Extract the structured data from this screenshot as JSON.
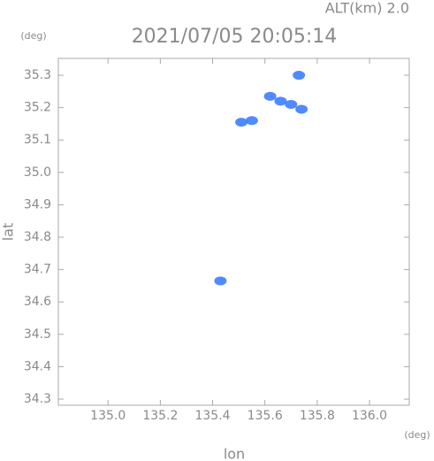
{
  "chart_data": {
    "type": "scatter",
    "title": "2021/07/05 20:05:14",
    "subtitle": "ALT(km) 2.0",
    "x_label": "lon",
    "y_label": "lat",
    "x_unit": "(deg)",
    "y_unit": "(deg)",
    "series": [
      {
        "color": "#3d7dff",
        "x": [
          135.73,
          135.62,
          135.66,
          135.7,
          135.74,
          135.55,
          135.51,
          135.43
        ],
        "y": [
          35.3,
          35.235,
          35.22,
          35.21,
          35.195,
          35.16,
          35.155,
          34.665
        ]
      }
    ],
    "xlim": [
      134.81,
      136.152
    ],
    "ylim": [
      34.281,
      35.352
    ],
    "xticks": [
      {
        "value": 135.0,
        "label": "135.0"
      },
      {
        "value": 135.2,
        "label": "135.2"
      },
      {
        "value": 135.4,
        "label": "135.4"
      },
      {
        "value": 135.6,
        "label": "135.6"
      },
      {
        "value": 135.8,
        "label": "135.8"
      },
      {
        "value": 136.0,
        "label": "136.0"
      }
    ],
    "yticks": [
      34.3,
      34.4,
      34.5,
      34.6,
      34.7,
      34.8,
      34.9,
      {
        "value": 35.0,
        "label": "35.0"
      },
      35.1,
      35.2,
      35.3
    ]
  }
}
